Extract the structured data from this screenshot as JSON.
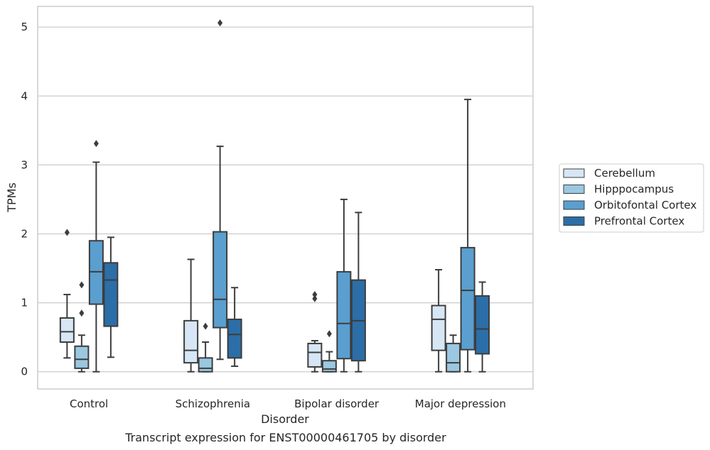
{
  "chart_data": {
    "type": "boxplot",
    "xlabel": "Disorder",
    "ylabel": "TPMs",
    "caption": "Transcript expression for ENST00000461705 by disorder",
    "ylim": [
      -0.25,
      5.3
    ],
    "yticks": [
      0,
      1,
      2,
      3,
      4,
      5
    ],
    "grid": "horizontal",
    "legend_position": "right",
    "categories": [
      "Control",
      "Schizophrenia",
      "Bipolar disorder",
      "Major depression"
    ],
    "series": [
      {
        "name": "Cerebellum",
        "color": "#d6e6f4",
        "boxes": [
          {
            "whislo": 0.2,
            "q1": 0.43,
            "med": 0.58,
            "q3": 0.78,
            "whishi": 1.12,
            "fliers": [
              2.02
            ]
          },
          {
            "whislo": 0.0,
            "q1": 0.13,
            "med": 0.31,
            "q3": 0.74,
            "whishi": 1.63,
            "fliers": []
          },
          {
            "whislo": 0.0,
            "q1": 0.07,
            "med": 0.28,
            "q3": 0.41,
            "whishi": 0.45,
            "fliers": [
              1.06,
              1.12
            ]
          },
          {
            "whislo": 0.0,
            "q1": 0.31,
            "med": 0.76,
            "q3": 0.96,
            "whishi": 1.48,
            "fliers": []
          }
        ]
      },
      {
        "name": "Hipppocampus",
        "color": "#9ac8e0",
        "boxes": [
          {
            "whislo": 0.0,
            "q1": 0.05,
            "med": 0.18,
            "q3": 0.37,
            "whishi": 0.53,
            "fliers": [
              0.85,
              1.26
            ]
          },
          {
            "whislo": 0.0,
            "q1": 0.0,
            "med": 0.05,
            "q3": 0.2,
            "whishi": 0.43,
            "fliers": [
              0.66
            ]
          },
          {
            "whislo": 0.0,
            "q1": 0.0,
            "med": 0.04,
            "q3": 0.16,
            "whishi": 0.29,
            "fliers": [
              0.55
            ]
          },
          {
            "whislo": 0.0,
            "q1": 0.0,
            "med": 0.13,
            "q3": 0.41,
            "whishi": 0.53,
            "fliers": []
          }
        ]
      },
      {
        "name": "Orbitofontal Cortex",
        "color": "#5a9fcf",
        "boxes": [
          {
            "whislo": 0.0,
            "q1": 0.98,
            "med": 1.45,
            "q3": 1.9,
            "whishi": 3.04,
            "fliers": [
              3.31
            ]
          },
          {
            "whislo": 0.18,
            "q1": 0.64,
            "med": 1.05,
            "q3": 2.03,
            "whishi": 3.27,
            "fliers": [
              5.06
            ]
          },
          {
            "whislo": 0.0,
            "q1": 0.19,
            "med": 0.7,
            "q3": 1.45,
            "whishi": 2.5,
            "fliers": []
          },
          {
            "whislo": 0.0,
            "q1": 0.32,
            "med": 1.18,
            "q3": 1.8,
            "whishi": 3.95,
            "fliers": []
          }
        ]
      },
      {
        "name": "Prefrontal Cortex",
        "color": "#2b6ea8",
        "boxes": [
          {
            "whislo": 0.21,
            "q1": 0.66,
            "med": 1.33,
            "q3": 1.58,
            "whishi": 1.95,
            "fliers": []
          },
          {
            "whislo": 0.08,
            "q1": 0.2,
            "med": 0.54,
            "q3": 0.76,
            "whishi": 1.22,
            "fliers": []
          },
          {
            "whislo": 0.0,
            "q1": 0.16,
            "med": 0.74,
            "q3": 1.33,
            "whishi": 2.31,
            "fliers": []
          },
          {
            "whislo": 0.0,
            "q1": 0.26,
            "med": 0.62,
            "q3": 1.1,
            "whishi": 1.3,
            "fliers": []
          }
        ]
      }
    ]
  }
}
